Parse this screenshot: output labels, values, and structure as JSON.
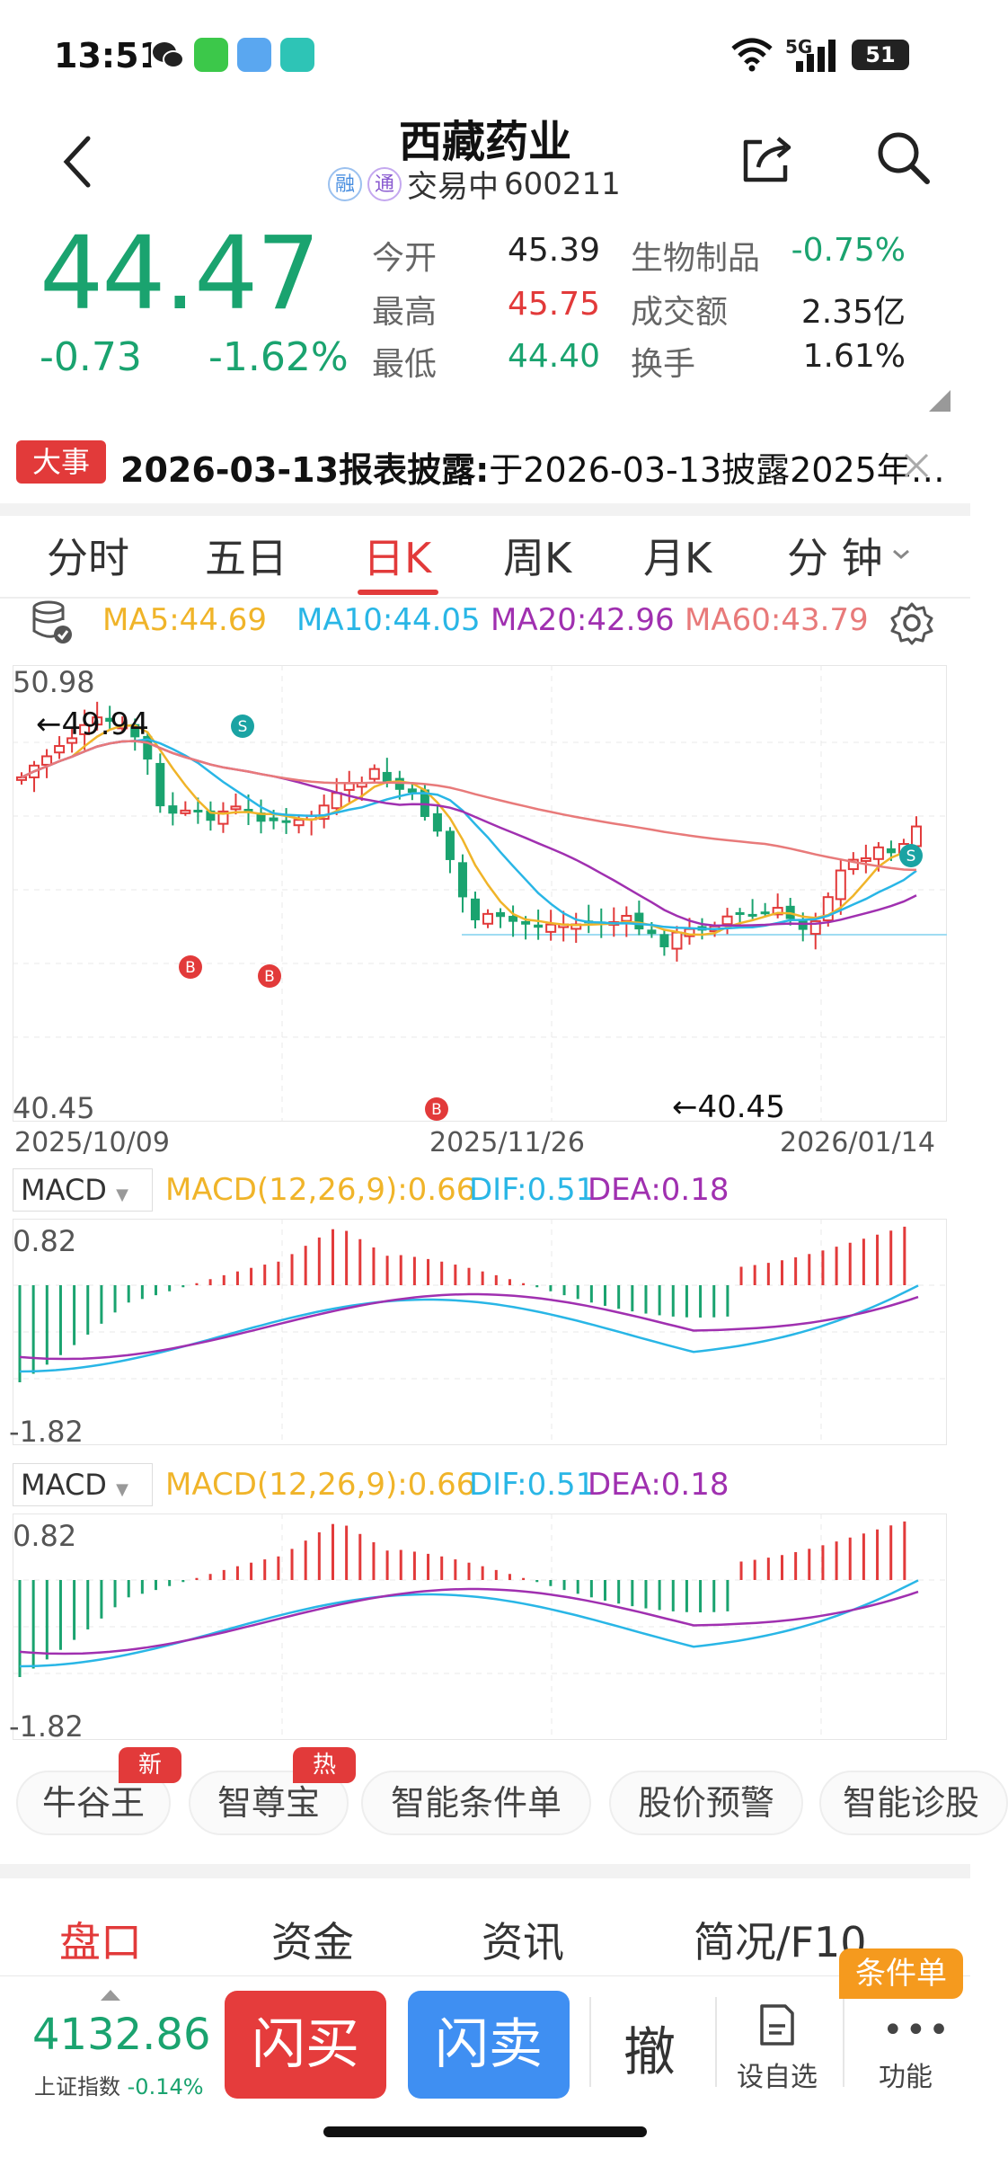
{
  "status": {
    "time": "13:51",
    "battery": "51",
    "signal": "5G"
  },
  "header": {
    "title": "西藏药业",
    "badge1": "融",
    "badge2": "通",
    "status": "交易中",
    "code": "600211"
  },
  "quote": {
    "price": "44.47",
    "change": "-0.73",
    "change_pct": "-1.62%",
    "open_label": "今开",
    "open": "45.39",
    "high_label": "最高",
    "high": "45.75",
    "low_label": "最低",
    "low": "44.40",
    "sector_label": "生物制品",
    "sector_pct": "-0.75%",
    "turnover_label": "成交额",
    "turnover": "2.35亿",
    "rate_label": "换手",
    "rate": "1.61%"
  },
  "news": {
    "tag": "大事",
    "headline": "2026-03-13报表披露:",
    "text": "于2026-03-13披露2025年…"
  },
  "tabs": [
    "分时",
    "五日",
    "日K",
    "周K",
    "月K",
    "分 钟"
  ],
  "ma": {
    "ma5": "MA5:44.69",
    "ma10": "MA10:44.05",
    "ma20": "MA20:42.96",
    "ma60": "MA60:43.79"
  },
  "kline": {
    "y_max": "50.98",
    "y_min": "40.45",
    "hi_note": "←49.94",
    "lo_note": "←40.45",
    "dates": [
      "2025/10/09",
      "2025/11/26",
      "2026/01/14"
    ],
    "marker_buy": "B",
    "marker_sell": "S"
  },
  "macd1": {
    "select": "MACD",
    "params": "MACD(12,26,9):0.66",
    "dif": "DIF:0.51",
    "dea": "DEA:0.18",
    "top": "0.82",
    "bottom": "-1.82"
  },
  "macd2": {
    "select": "MACD",
    "params": "MACD(12,26,9):0.66",
    "dif": "DIF:0.51",
    "dea": "DEA:0.18",
    "top": "0.82",
    "bottom": "-1.82"
  },
  "tools": [
    {
      "label": "牛谷王",
      "badge": "新"
    },
    {
      "label": "智尊宝",
      "badge": "热"
    },
    {
      "label": "智能条件单",
      "badge": ""
    },
    {
      "label": "股价预警",
      "badge": ""
    },
    {
      "label": "智能诊股",
      "badge": ""
    }
  ],
  "bottom_tabs": [
    "盘口",
    "资金",
    "资讯",
    "简况/F10"
  ],
  "bottom_bar": {
    "index_value": "4132.86",
    "index_name": "上证指数",
    "index_pct": "-0.14%",
    "buy": "闪买",
    "sell": "闪卖",
    "cancel": "撤",
    "watch": "设自选",
    "more": "功能",
    "cond_badge": "条件单"
  },
  "colors": {
    "up": "#e23a3a",
    "down": "#1aa36f",
    "ma5": "#f0b429",
    "ma10": "#29b6e6",
    "ma20": "#a030b0",
    "ma60": "#e87a7a"
  }
}
